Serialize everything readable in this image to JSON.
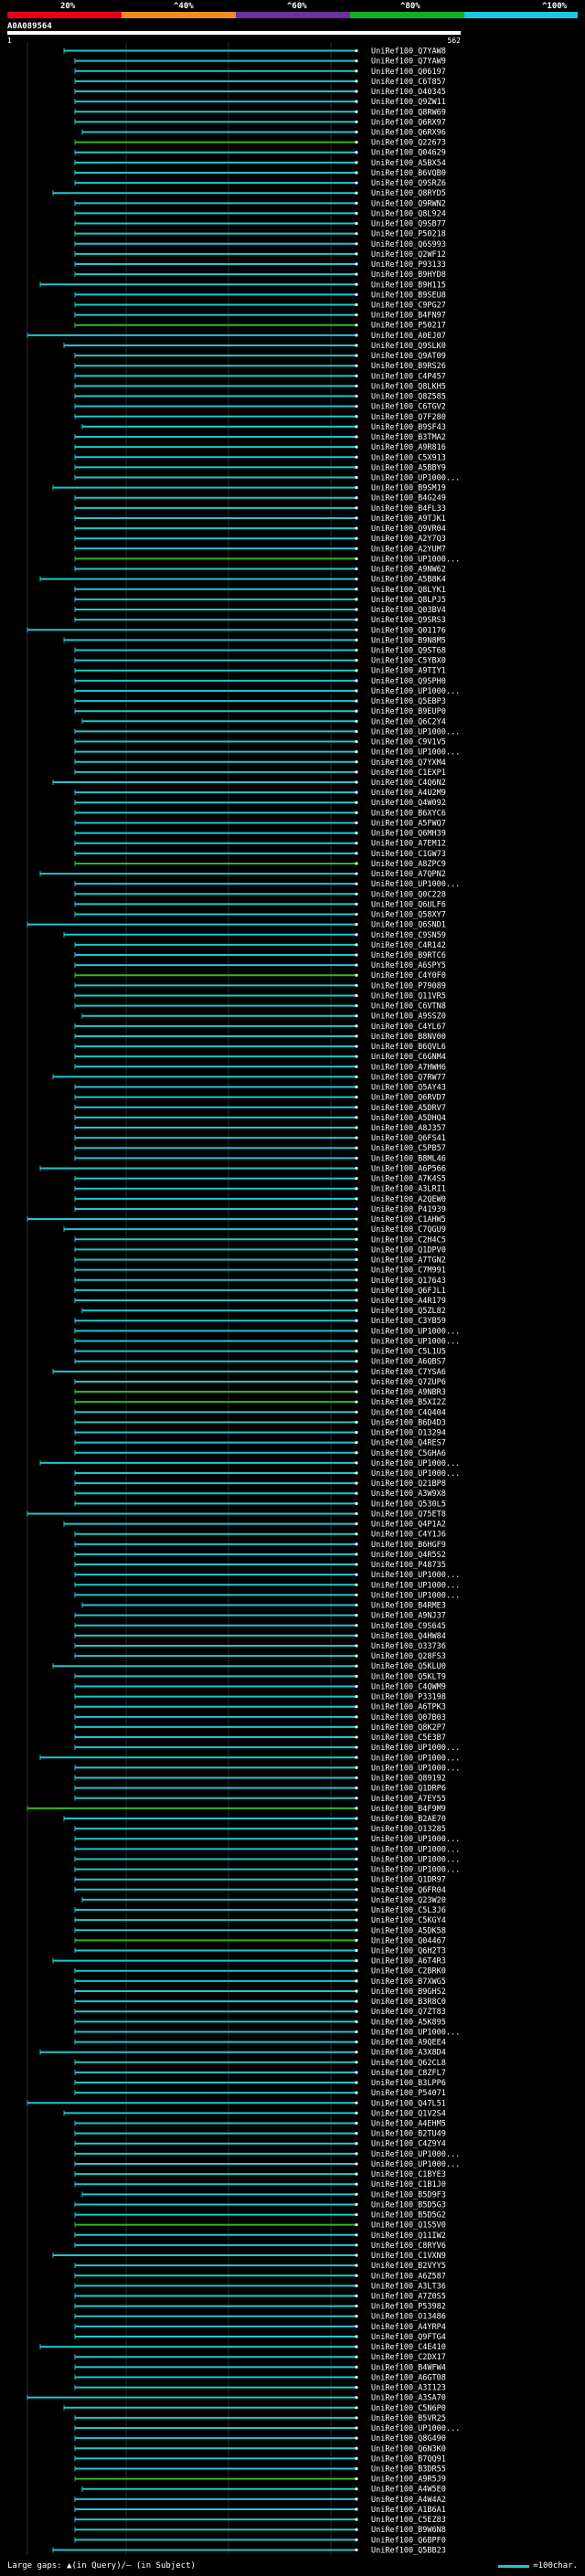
{
  "header": {
    "query_id": "A0A089564",
    "start": "1",
    "end": "562",
    "scale": [
      {
        "label": "20%",
        "color": "#e5001a"
      },
      {
        "label": "^40%",
        "color": "#f28c1e"
      },
      {
        "label": "^60%",
        "color": "#6e2fa0"
      },
      {
        "label": "^80%",
        "color": "#0db21e"
      },
      {
        "label": "^100%",
        "color": "#1ac8e0"
      }
    ]
  },
  "colors": {
    "identity_100": "#1ac8cf",
    "identity_80": "#2fb81e",
    "background": "#000000",
    "gridline": "#2a2a2a"
  },
  "hits": [
    "UniRef100_Q7YAW8",
    "UniRef100_Q7YAW9",
    "UniRef100_Q06197",
    "UniRef100_C6T857",
    "UniRef100_O40345",
    "UniRef100_Q9ZW11",
    "UniRef100_Q8RW69",
    "UniRef100_Q6RX97",
    "UniRef100_Q6RX96",
    "UniRef100_Q22673",
    "UniRef100_Q04629",
    "UniRef100_A5BX54",
    "UniRef100_B6VQB0",
    "UniRef100_Q9SRZ6",
    "UniRef100_Q8RYD5",
    "UniRef100_Q9RWN2",
    "UniRef100_Q8L924",
    "UniRef100_Q9SB77",
    "UniRef100_P50218",
    "UniRef100_Q6S993",
    "UniRef100_Q2WF12",
    "UniRef100_P93133",
    "UniRef100_B9HYD8",
    "UniRef100_B9H115",
    "UniRef100_B9SEU8",
    "UniRef100_C9PG27",
    "UniRef100_B4FN97",
    "UniRef100_P50217",
    "UniRef100_A0EJ07",
    "UniRef100_Q9SLK0",
    "UniRef100_Q9AT09",
    "UniRef100_B9RS26",
    "UniRef100_C4P457",
    "UniRef100_Q8LKH5",
    "UniRef100_Q8Z585",
    "UniRef100_C6TGV2",
    "UniRef100_Q7F280",
    "UniRef100_B9SF43",
    "UniRef100_B3TMA2",
    "UniRef100_A9R816",
    "UniRef100_C5X913",
    "UniRef100_A5BBY9",
    "UniRef100_UP1000...",
    "UniRef100_B9SM19",
    "UniRef100_B4G249",
    "UniRef100_B4FL33",
    "UniRef100_A9TJK1",
    "UniRef100_Q9VR04",
    "UniRef100_A2Y7Q3",
    "UniRef100_A2YUM7",
    "UniRef100_UP1000...",
    "UniRef100_A9NW62",
    "UniRef100_A5B8K4",
    "UniRef100_Q8LYK1",
    "UniRef100_Q8LPJ5",
    "UniRef100_Q03BV4",
    "UniRef100_Q9SRS3",
    "UniRef100_Q01176",
    "UniRef100_B9N8M5",
    "UniRef100_Q9ST68",
    "UniRef100_C5YBX0",
    "UniRef100_A9TIY1",
    "UniRef100_Q9SPH0",
    "UniRef100_UP1000...",
    "UniRef100_Q5EBP3",
    "UniRef100_B9EUP0",
    "UniRef100_Q6C2Y4",
    "UniRef100_UP1000...",
    "UniRef100_C9V1V5",
    "UniRef100_UP1000...",
    "UniRef100_Q7YXM4",
    "UniRef100_C1EXP1",
    "UniRef100_C4Q6N2",
    "UniRef100_A4U2M9",
    "UniRef100_Q4W092",
    "UniRef100_B6XYC6",
    "UniRef100_A5FWQ7",
    "UniRef100_Q6MH39",
    "UniRef100_A7EM12",
    "UniRef100_C1GW73",
    "UniRef100_A8ZPC9",
    "UniRef100_A7QPN2",
    "UniRef100_UP1000...",
    "UniRef100_Q0C228",
    "UniRef100_Q6ULF6",
    "UniRef100_Q58XY7",
    "UniRef100_Q6SND1",
    "UniRef100_C9SN59",
    "UniRef100_C4R142",
    "UniRef100_B9RTC6",
    "UniRef100_A6SPY5",
    "UniRef100_C4Y0F0",
    "UniRef100_P79089",
    "UniRef100_Q11VR5",
    "UniRef100_C6VTN8",
    "UniRef100_A9SSZ0",
    "UniRef100_C4YL67",
    "UniRef100_B8NV00",
    "UniRef100_B6QVL6",
    "UniRef100_C6GNM4",
    "UniRef100_A7HWH6",
    "UniRef100_Q7RW77",
    "UniRef100_Q5AY43",
    "UniRef100_Q6RVD7",
    "UniRef100_A5DRV7",
    "UniRef100_A5DHQ4",
    "UniRef100_A8J357",
    "UniRef100_Q6FS41",
    "UniRef100_C5PB57",
    "UniRef100_B8ML46",
    "UniRef100_A6P566",
    "UniRef100_A7K4S5",
    "UniRef100_A3LRI1",
    "UniRef100_A2QEW0",
    "UniRef100_P41939",
    "UniRef100_C1AHW5",
    "UniRef100_C7QGU9",
    "UniRef100_C2H4C5",
    "UniRef100_Q1DPV0",
    "UniRef100_A7TGN2",
    "UniRef100_C7M991",
    "UniRef100_Q17643",
    "UniRef100_Q6FJL1",
    "UniRef100_A4R179",
    "UniRef100_Q5ZL82",
    "UniRef100_C3YB59",
    "UniRef100_UP1000...",
    "UniRef100_UP1000...",
    "UniRef100_C5L1U5",
    "UniRef100_A6QBS7",
    "UniRef100_C7YSA6",
    "UniRef100_Q7ZUP6",
    "UniRef100_A9NBR3",
    "UniRef100_B5XI2Z",
    "UniRef100_C4Q404",
    "UniRef100_B6D4D3",
    "UniRef100_O13294",
    "UniRef100_Q4RES7",
    "UniRef100_C5GHA6",
    "UniRef100_UP1000...",
    "UniRef100_UP1000...",
    "UniRef100_Q21BP8",
    "UniRef100_A3W9X8",
    "UniRef100_Q530L5",
    "UniRef100_Q75ET8",
    "UniRef100_Q4P1A2",
    "UniRef100_C4Y1J6",
    "UniRef100_B6HGF9",
    "UniRef100_Q4R5S2",
    "UniRef100_P48735",
    "UniRef100_UP1000...",
    "UniRef100_UP1000...",
    "UniRef100_UP1000...",
    "UniRef100_B4RME3",
    "UniRef100_A9NJ37",
    "UniRef100_C9S645",
    "UniRef100_Q4HW84",
    "UniRef100_O33736",
    "UniRef100_Q28FS3",
    "UniRef100_Q5KLU0",
    "UniRef100_Q5KLT9",
    "UniRef100_C4QWM9",
    "UniRef100_P33198",
    "UniRef100_A6TPK3",
    "UniRef100_Q07B03",
    "UniRef100_Q8K2P7",
    "UniRef100_C5E3B7",
    "UniRef100_UP1000...",
    "UniRef100_UP1000...",
    "UniRef100_UP1000...",
    "UniRef100_Q89192",
    "UniRef100_Q1DRP6",
    "UniRef100_A7EY55",
    "UniRef100_B4F9M9",
    "UniRef100_B2AE70",
    "UniRef100_O13285",
    "UniRef100_UP1000...",
    "UniRef100_UP1000...",
    "UniRef100_UP1000...",
    "UniRef100_UP1000...",
    "UniRef100_Q1DR97",
    "UniRef100_Q6FR04",
    "UniRef100_Q23W20",
    "UniRef100_C5L3J6",
    "UniRef100_C5KGY4",
    "UniRef100_A5DK58",
    "UniRef100_Q04467",
    "UniRef100_Q6H2T3",
    "UniRef100_A6T4R3",
    "UniRef100_C2BRK0",
    "UniRef100_B7XWG5",
    "UniRef100_B9GHS2",
    "UniRef100_B3R8C0",
    "UniRef100_Q7ZT83",
    "UniRef100_A5K895",
    "UniRef100_UP1000...",
    "UniRef100_A9QEE4",
    "UniRef100_A3X8D4",
    "UniRef100_Q62CL8",
    "UniRef100_C8ZFL7",
    "UniRef100_B3LPP6",
    "UniRef100_P54071",
    "UniRef100_Q47L51",
    "UniRef100_Q1V2S4",
    "UniRef100_A4EHM5",
    "UniRef100_B2TU49",
    "UniRef100_C4Z9Y4",
    "UniRef100_UP1000...",
    "UniRef100_UP1000...",
    "UniRef100_C1BYE3",
    "UniRef100_C1B1J0",
    "UniRef100_B5D9F3",
    "UniRef100_B5D5G3",
    "UniRef100_B5D5G2",
    "UniRef100_Q1S5V0",
    "UniRef100_Q11IW2",
    "UniRef100_C8RYV6",
    "UniRef100_C1VXN9",
    "UniRef100_B2VYY5",
    "UniRef100_A6Z587",
    "UniRef100_A3LT36",
    "UniRef100_A7Z0S5",
    "UniRef100_P53982",
    "UniRef100_O13486",
    "UniRef100_A4YRP4",
    "UniRef100_Q9FTG4",
    "UniRef100_C4E410",
    "UniRef100_C2DX17",
    "UniRef100_B4WFW4",
    "UniRef100_A6GT08",
    "UniRef100_A3I123",
    "UniRef100_A3SA70",
    "UniRef100_C5N6P0",
    "UniRef100_B5VR25",
    "UniRef100_UP1000...",
    "UniRef100_Q8G490",
    "UniRef100_Q6N3K0",
    "UniRef100_B7QQ91",
    "UniRef100_B3DR55",
    "UniRef100_A9R5J9",
    "UniRef100_A4W5E0",
    "UniRef100_A4W4A2",
    "UniRef100_A1B6A1",
    "UniRef100_C5EZ83",
    "UniRef100_B9W6N8",
    "UniRef100_Q6BPF0",
    "UniRef100_Q5BB23"
  ],
  "footer": {
    "legend_left": "Large gaps: ▲(in Query)/— (in Subject)",
    "legend_right": "=100char."
  }
}
